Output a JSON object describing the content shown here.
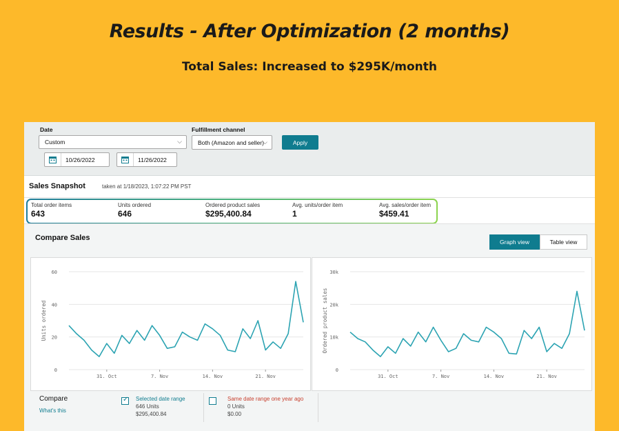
{
  "headline": "Results - After Optimization (2 months)",
  "subheadline": "Total Sales: Increased to $295K/month",
  "filters": {
    "date_label": "Date",
    "date_value": "Custom",
    "start_date": "10/26/2022",
    "end_date": "11/26/2022",
    "channel_label": "Fulfillment channel",
    "channel_value": "Both (Amazon and seller)",
    "apply_label": "Apply"
  },
  "snapshot": {
    "title": "Sales Snapshot",
    "taken": "taken at 1/18/2023, 1:07:22 PM PST",
    "metrics": [
      {
        "label": "Total order items",
        "value": "643"
      },
      {
        "label": "Units ordered",
        "value": "646"
      },
      {
        "label": "Ordered product sales",
        "value": "$295,400.84"
      },
      {
        "label": "Avg. units/order item",
        "value": "1"
      },
      {
        "label": "Avg. sales/order item",
        "value": "$459.41"
      }
    ]
  },
  "compare": {
    "title": "Compare Sales",
    "graph_view": "Graph view",
    "table_view": "Table view",
    "compare_label": "Compare",
    "whats_this": "What's this",
    "selected": {
      "label": "Selected date range",
      "units": "646 Units",
      "sales": "$295,400.84"
    },
    "last_year": {
      "label": "Same date range one year ago",
      "units": "0 Units",
      "sales": "$0.00"
    }
  },
  "colors": {
    "accent": "#0F7C8F",
    "line": "#2BA3B2",
    "background": "#FDB92A"
  },
  "chart_data": [
    {
      "type": "line",
      "ylabel": "Units ordered",
      "ylim": [
        0,
        60
      ],
      "yticks": [
        "0",
        "20",
        "40",
        "60"
      ],
      "xticks": [
        "31. Oct",
        "7. Nov",
        "14. Nov",
        "21. Nov"
      ],
      "x": [
        "10/26",
        "10/27",
        "10/28",
        "10/29",
        "10/30",
        "10/31",
        "11/1",
        "11/2",
        "11/3",
        "11/4",
        "11/5",
        "11/6",
        "11/7",
        "11/8",
        "11/9",
        "11/10",
        "11/11",
        "11/12",
        "11/13",
        "11/14",
        "11/15",
        "11/16",
        "11/17",
        "11/18",
        "11/19",
        "11/20",
        "11/21",
        "11/22",
        "11/23",
        "11/24",
        "11/25",
        "11/26"
      ],
      "series": [
        {
          "values": [
            27,
            22,
            18,
            12,
            8,
            16,
            10,
            21,
            16,
            24,
            18,
            27,
            21,
            13,
            14,
            23,
            20,
            18,
            28,
            25,
            21,
            12,
            11,
            25,
            19,
            30,
            12,
            17,
            13,
            22,
            54,
            29
          ]
        }
      ]
    },
    {
      "type": "line",
      "ylabel": "Ordered product sales",
      "ylim": [
        0,
        30000
      ],
      "yticks": [
        "0",
        "10k",
        "20k",
        "30k"
      ],
      "xticks": [
        "31. Oct",
        "7. Nov",
        "14. Nov",
        "21. Nov"
      ],
      "x": [
        "10/26",
        "10/27",
        "10/28",
        "10/29",
        "10/30",
        "10/31",
        "11/1",
        "11/2",
        "11/3",
        "11/4",
        "11/5",
        "11/6",
        "11/7",
        "11/8",
        "11/9",
        "11/10",
        "11/11",
        "11/12",
        "11/13",
        "11/14",
        "11/15",
        "11/16",
        "11/17",
        "11/18",
        "11/19",
        "11/20",
        "11/21",
        "11/22",
        "11/23",
        "11/24",
        "11/25",
        "11/26"
      ],
      "series": [
        {
          "values": [
            11500,
            9500,
            8500,
            6000,
            4000,
            7000,
            5000,
            9500,
            7200,
            11500,
            8500,
            13000,
            9000,
            5500,
            6500,
            11000,
            9000,
            8500,
            13000,
            11500,
            9500,
            5000,
            4800,
            12000,
            9500,
            13000,
            5500,
            8000,
            6500,
            11000,
            24000,
            12000
          ]
        }
      ]
    }
  ]
}
